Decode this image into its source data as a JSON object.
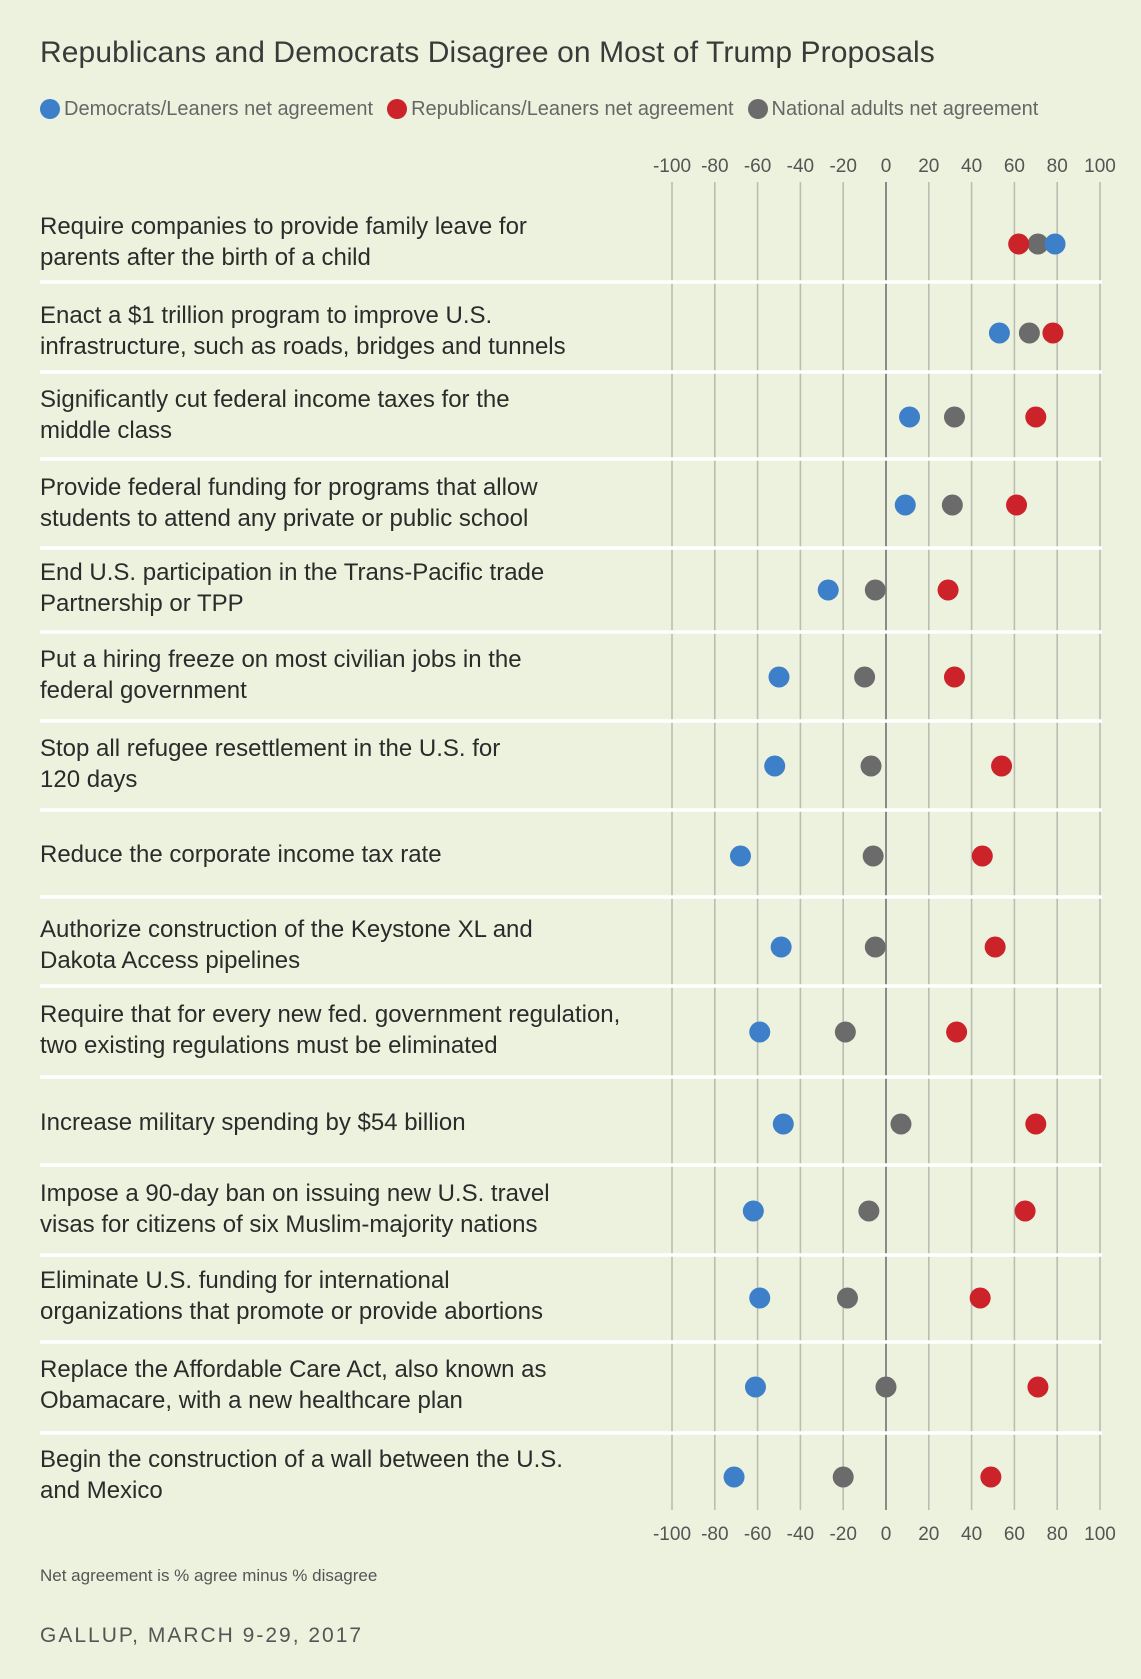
{
  "title": "Republicans and Democrats Disagree on Most of Trump Proposals",
  "legend": [
    {
      "label": "Democrats/Leaners net agreement",
      "color": "#3d7fc9"
    },
    {
      "label": "Republicans/Leaners net agreement",
      "color": "#cc2229"
    },
    {
      "label": "National adults net agreement",
      "color": "#6b6b6b"
    }
  ],
  "footnote": "Net agreement is % agree minus % disagree",
  "source": "GALLUP, MARCH 9-29, 2017",
  "chart_data": {
    "type": "scatter",
    "title": "Republicans and Democrats Disagree on Most of Trump Proposals",
    "xlim": [
      -100,
      100
    ],
    "xticks": [
      -100,
      -80,
      -60,
      -40,
      -20,
      0,
      20,
      40,
      60,
      80,
      100
    ],
    "grid": true,
    "legend_position": "top",
    "categories": [
      "Require companies to provide family leave for parents after the birth of a child",
      "Enact a $1 trillion program to improve U.S. infrastructure, such as roads, bridges and tunnels",
      "Significantly cut federal income taxes for the middle class",
      "Provide federal funding for programs that allow students to attend any private or public school",
      "End U.S. participation in the Trans-Pacific trade Partnership or TPP",
      "Put a hiring freeze on most civilian jobs in the federal government",
      "Stop all refugee resettlement in the U.S. for 120 days",
      "Reduce the corporate income tax rate",
      "Authorize construction of the Keystone XL and Dakota Access pipelines",
      "Require that for every new fed. government regulation, two existing regulations must be eliminated",
      "Increase military spending by $54 billion",
      "Impose a 90-day ban on issuing new U.S. travel visas for citizens of six Muslim-majority nations",
      "Eliminate U.S. funding for international organizations that promote or provide abortions",
      "Replace the Affordable Care Act, also known as Obamacare, with a new healthcare plan",
      "Begin the construction of a wall between the U.S. and Mexico"
    ],
    "label_lines": [
      [
        "Require companies to provide family leave for",
        "parents after the birth of a child"
      ],
      [
        "Enact a $1 trillion program to improve U.S.",
        "infrastructure, such as roads, bridges and tunnels"
      ],
      [
        "Significantly cut federal income taxes for the",
        "middle class"
      ],
      [
        "Provide federal funding for programs that allow",
        "students to attend any private or public school"
      ],
      [
        "End U.S. participation in the Trans-Pacific trade",
        "Partnership or TPP"
      ],
      [
        "Put a hiring freeze on most civilian jobs in the",
        "federal government"
      ],
      [
        "Stop all refugee resettlement in the U.S. for",
        "120 days"
      ],
      [
        "Reduce the corporate income tax rate"
      ],
      [
        "Authorize construction of the Keystone XL and",
        "Dakota Access pipelines"
      ],
      [
        "Require that for every new fed. government regulation,",
        "two existing regulations must be eliminated"
      ],
      [
        "Increase military spending by $54 billion"
      ],
      [
        "Impose a 90-day ban on issuing new U.S. travel",
        "visas for citizens of six Muslim-majority nations"
      ],
      [
        "Eliminate U.S. funding for international",
        "organizations that promote or provide abortions"
      ],
      [
        "Replace the Affordable Care Act, also known as",
        "Obamacare, with a new healthcare plan"
      ],
      [
        "Begin the construction of a wall between the U.S.",
        "and Mexico"
      ]
    ],
    "series": [
      {
        "name": "Democrats/Leaners net agreement",
        "color": "#3d7fc9",
        "values": [
          79,
          53,
          11,
          9,
          -27,
          -50,
          -52,
          -68,
          -49,
          -59,
          -48,
          -62,
          -59,
          -61,
          -71
        ]
      },
      {
        "name": "Republicans/Leaners net agreement",
        "color": "#cc2229",
        "values": [
          62,
          78,
          70,
          61,
          29,
          32,
          54,
          45,
          51,
          33,
          70,
          65,
          44,
          71,
          49
        ]
      },
      {
        "name": "National adults net agreement",
        "color": "#6b6b6b",
        "values": [
          71,
          67,
          32,
          31,
          -5,
          -10,
          -7,
          -6,
          -5,
          -19,
          7,
          -8,
          -18,
          0,
          -20
        ]
      }
    ]
  }
}
